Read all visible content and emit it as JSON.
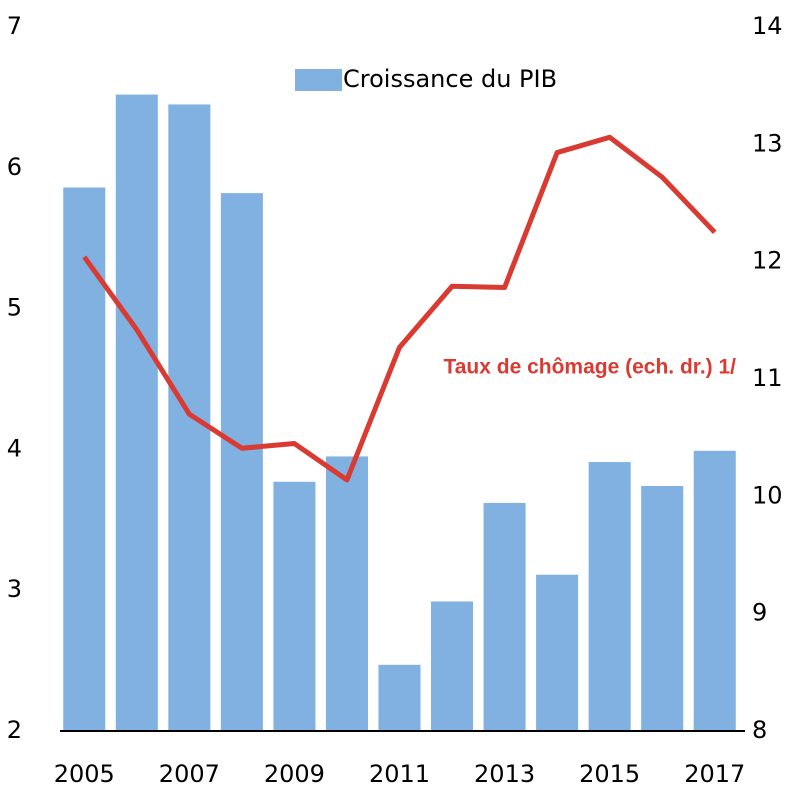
{
  "chart_data": {
    "type": "bar_line",
    "categories": [
      "2005",
      null,
      "2007",
      null,
      "2009",
      null,
      "2011",
      null,
      "2013",
      null,
      "2015",
      null,
      "2017"
    ],
    "series": [
      {
        "name": "Croissance du PIB",
        "type": "bar",
        "color": "#80b1e0",
        "axis": "y",
        "values": [
          5.86,
          6.52,
          6.45,
          5.82,
          3.77,
          3.95,
          2.47,
          2.92,
          3.62,
          3.11,
          3.91,
          3.74,
          3.99
        ]
      },
      {
        "name": "Taux de chômage (ech. dr.) 1/",
        "type": "line",
        "color": "#d93a32",
        "axis": "y2",
        "values": [
          12.04,
          11.42,
          10.7,
          10.41,
          10.45,
          10.14,
          11.27,
          11.79,
          11.78,
          12.93,
          13.06,
          12.72,
          12.25
        ]
      }
    ],
    "ylim": [
      2,
      7
    ],
    "yticks": [
      2,
      3,
      4,
      5,
      6,
      7
    ],
    "y2lim": [
      8,
      14
    ],
    "y2ticks": [
      8,
      9,
      10,
      11,
      12,
      13,
      14
    ]
  }
}
